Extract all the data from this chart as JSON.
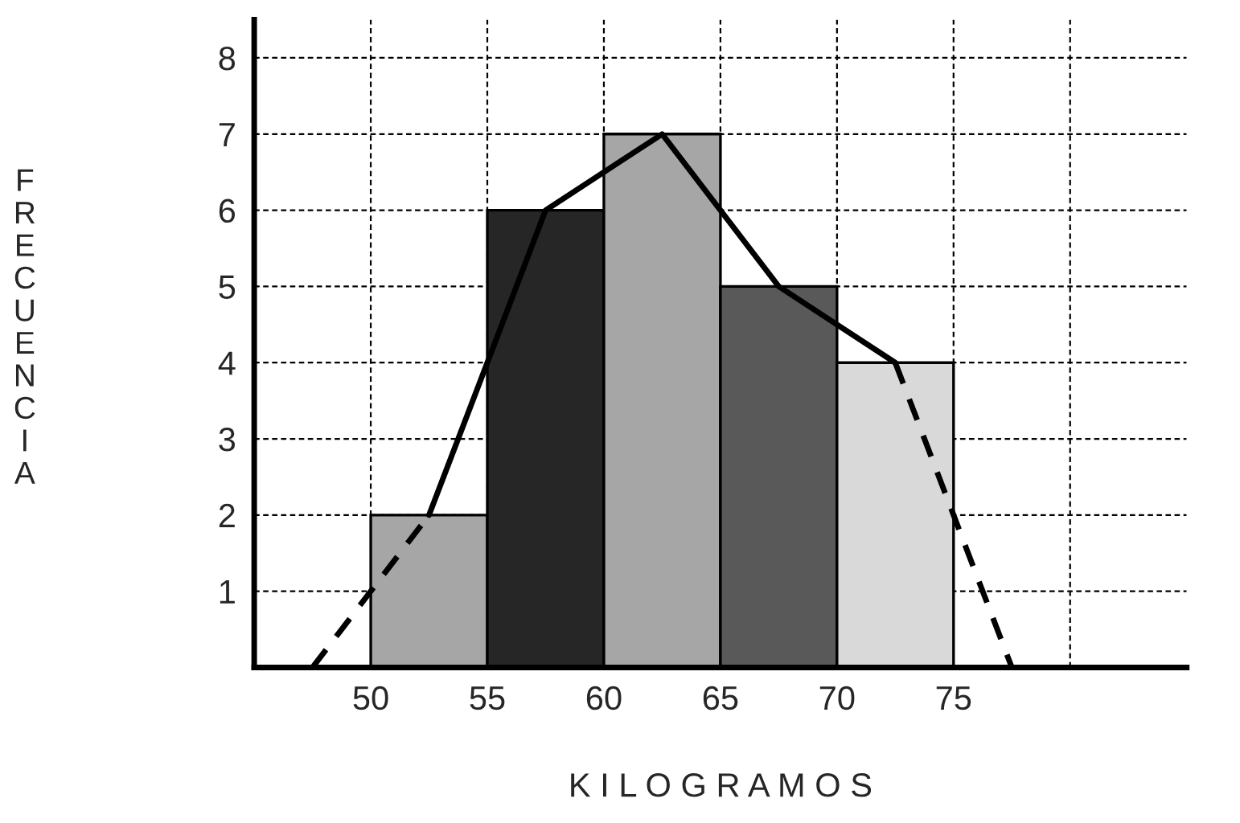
{
  "chart_data": {
    "type": "histogram",
    "bins": [
      50,
      55,
      60,
      65,
      70,
      75
    ],
    "values": [
      2,
      6,
      7,
      5,
      4
    ],
    "colors": [
      "#a6a6a6",
      "#262626",
      "#a6a6a6",
      "#595959",
      "#d9d9d9"
    ],
    "series": [
      {
        "type": "line",
        "line_style": "dashed",
        "color": "#000000",
        "x": [
          47.5,
          52.5
        ],
        "values": [
          0,
          2
        ]
      },
      {
        "type": "line",
        "line_style": "solid",
        "color": "#000000",
        "x": [
          52.5,
          57.5,
          62.5,
          67.5,
          72.5
        ],
        "values": [
          2,
          6,
          7,
          5,
          4
        ]
      },
      {
        "type": "line",
        "line_style": "dashed",
        "color": "#000000",
        "x": [
          72.5,
          77.5
        ],
        "values": [
          4,
          0
        ]
      }
    ],
    "xlabel": "K I L O G R A M O S",
    "ylabel": "FRECUENCIA",
    "xlim": [
      45,
      85
    ],
    "ylim": [
      0,
      8.5
    ],
    "xticks": [
      50,
      55,
      60,
      65,
      70,
      75,
      {
        "value": 80,
        "label": null
      }
    ],
    "yticks": [
      1,
      2,
      3,
      4,
      5,
      6,
      7,
      8
    ],
    "grid": true,
    "marker": "none"
  }
}
